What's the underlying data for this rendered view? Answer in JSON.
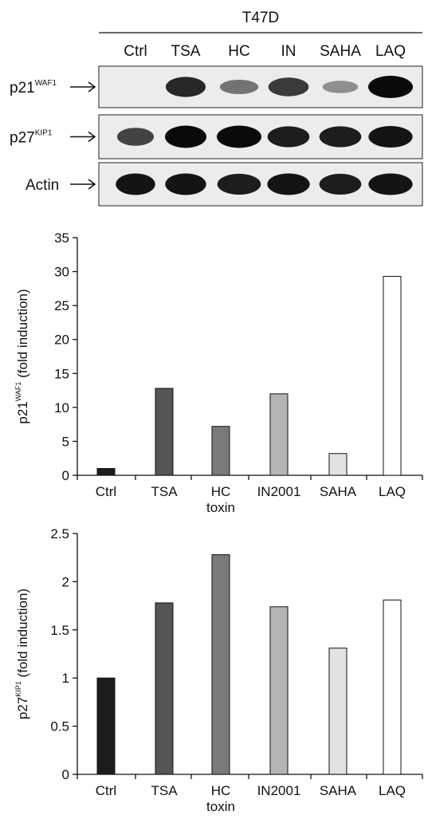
{
  "blot": {
    "cell_line": "T47D",
    "lanes": [
      "Ctrl",
      "TSA",
      "HC",
      "IN",
      "SAHA",
      "LAQ"
    ],
    "rows": [
      {
        "name": "p21",
        "sup": "WAF1",
        "intensity": [
          0.0,
          0.85,
          0.45,
          0.75,
          0.3,
          1.0
        ]
      },
      {
        "name": "p27",
        "sup": "KIP1",
        "intensity": [
          0.7,
          1.0,
          1.0,
          0.9,
          0.9,
          0.95
        ]
      },
      {
        "name": "Actin",
        "sup": "",
        "intensity": [
          0.95,
          0.95,
          0.9,
          0.95,
          0.9,
          0.95
        ]
      }
    ]
  },
  "chart_data": [
    {
      "type": "bar",
      "categories": [
        "Ctrl",
        "TSA",
        "HC toxin",
        "IN2001",
        "SAHA",
        "LAQ"
      ],
      "category_lines": [
        [
          "Ctrl"
        ],
        [
          "TSA"
        ],
        [
          "HC",
          "toxin"
        ],
        [
          "IN2001"
        ],
        [
          "SAHA"
        ],
        [
          "LAQ"
        ]
      ],
      "values": [
        1.0,
        12.8,
        7.2,
        12.0,
        3.2,
        29.3
      ],
      "bar_colors": [
        "#1c1c1c",
        "#555555",
        "#7a7a7a",
        "#b4b4b4",
        "#e2e2e2",
        "#ffffff"
      ],
      "ylabel_main": "p21",
      "ylabel_sup": "WAF1",
      "ylabel_tail": " (fold induction)",
      "ylim": [
        0,
        35
      ],
      "yticks": [
        0,
        5,
        10,
        15,
        20,
        25,
        30,
        35
      ],
      "ytick_labels": [
        "0",
        "5",
        "10",
        "15",
        "20",
        "25",
        "30",
        "35"
      ]
    },
    {
      "type": "bar",
      "categories": [
        "Ctrl",
        "TSA",
        "HC toxin",
        "IN2001",
        "SAHA",
        "LAQ"
      ],
      "category_lines": [
        [
          "Ctrl"
        ],
        [
          "TSA"
        ],
        [
          "HC",
          "toxin"
        ],
        [
          "IN2001"
        ],
        [
          "SAHA"
        ],
        [
          "LAQ"
        ]
      ],
      "values": [
        1.0,
        1.78,
        2.28,
        1.74,
        1.31,
        1.81
      ],
      "bar_colors": [
        "#1c1c1c",
        "#555555",
        "#7a7a7a",
        "#b4b4b4",
        "#e2e2e2",
        "#ffffff"
      ],
      "ylabel_main": "p27",
      "ylabel_sup": "KIP1",
      "ylabel_tail": " (fold induction)",
      "ylim": [
        0,
        2.5
      ],
      "yticks": [
        0,
        0.5,
        1,
        1.5,
        2,
        2.5
      ],
      "ytick_labels": [
        "0",
        "0.5",
        "1",
        "1.5",
        "2",
        "2.5"
      ]
    }
  ]
}
